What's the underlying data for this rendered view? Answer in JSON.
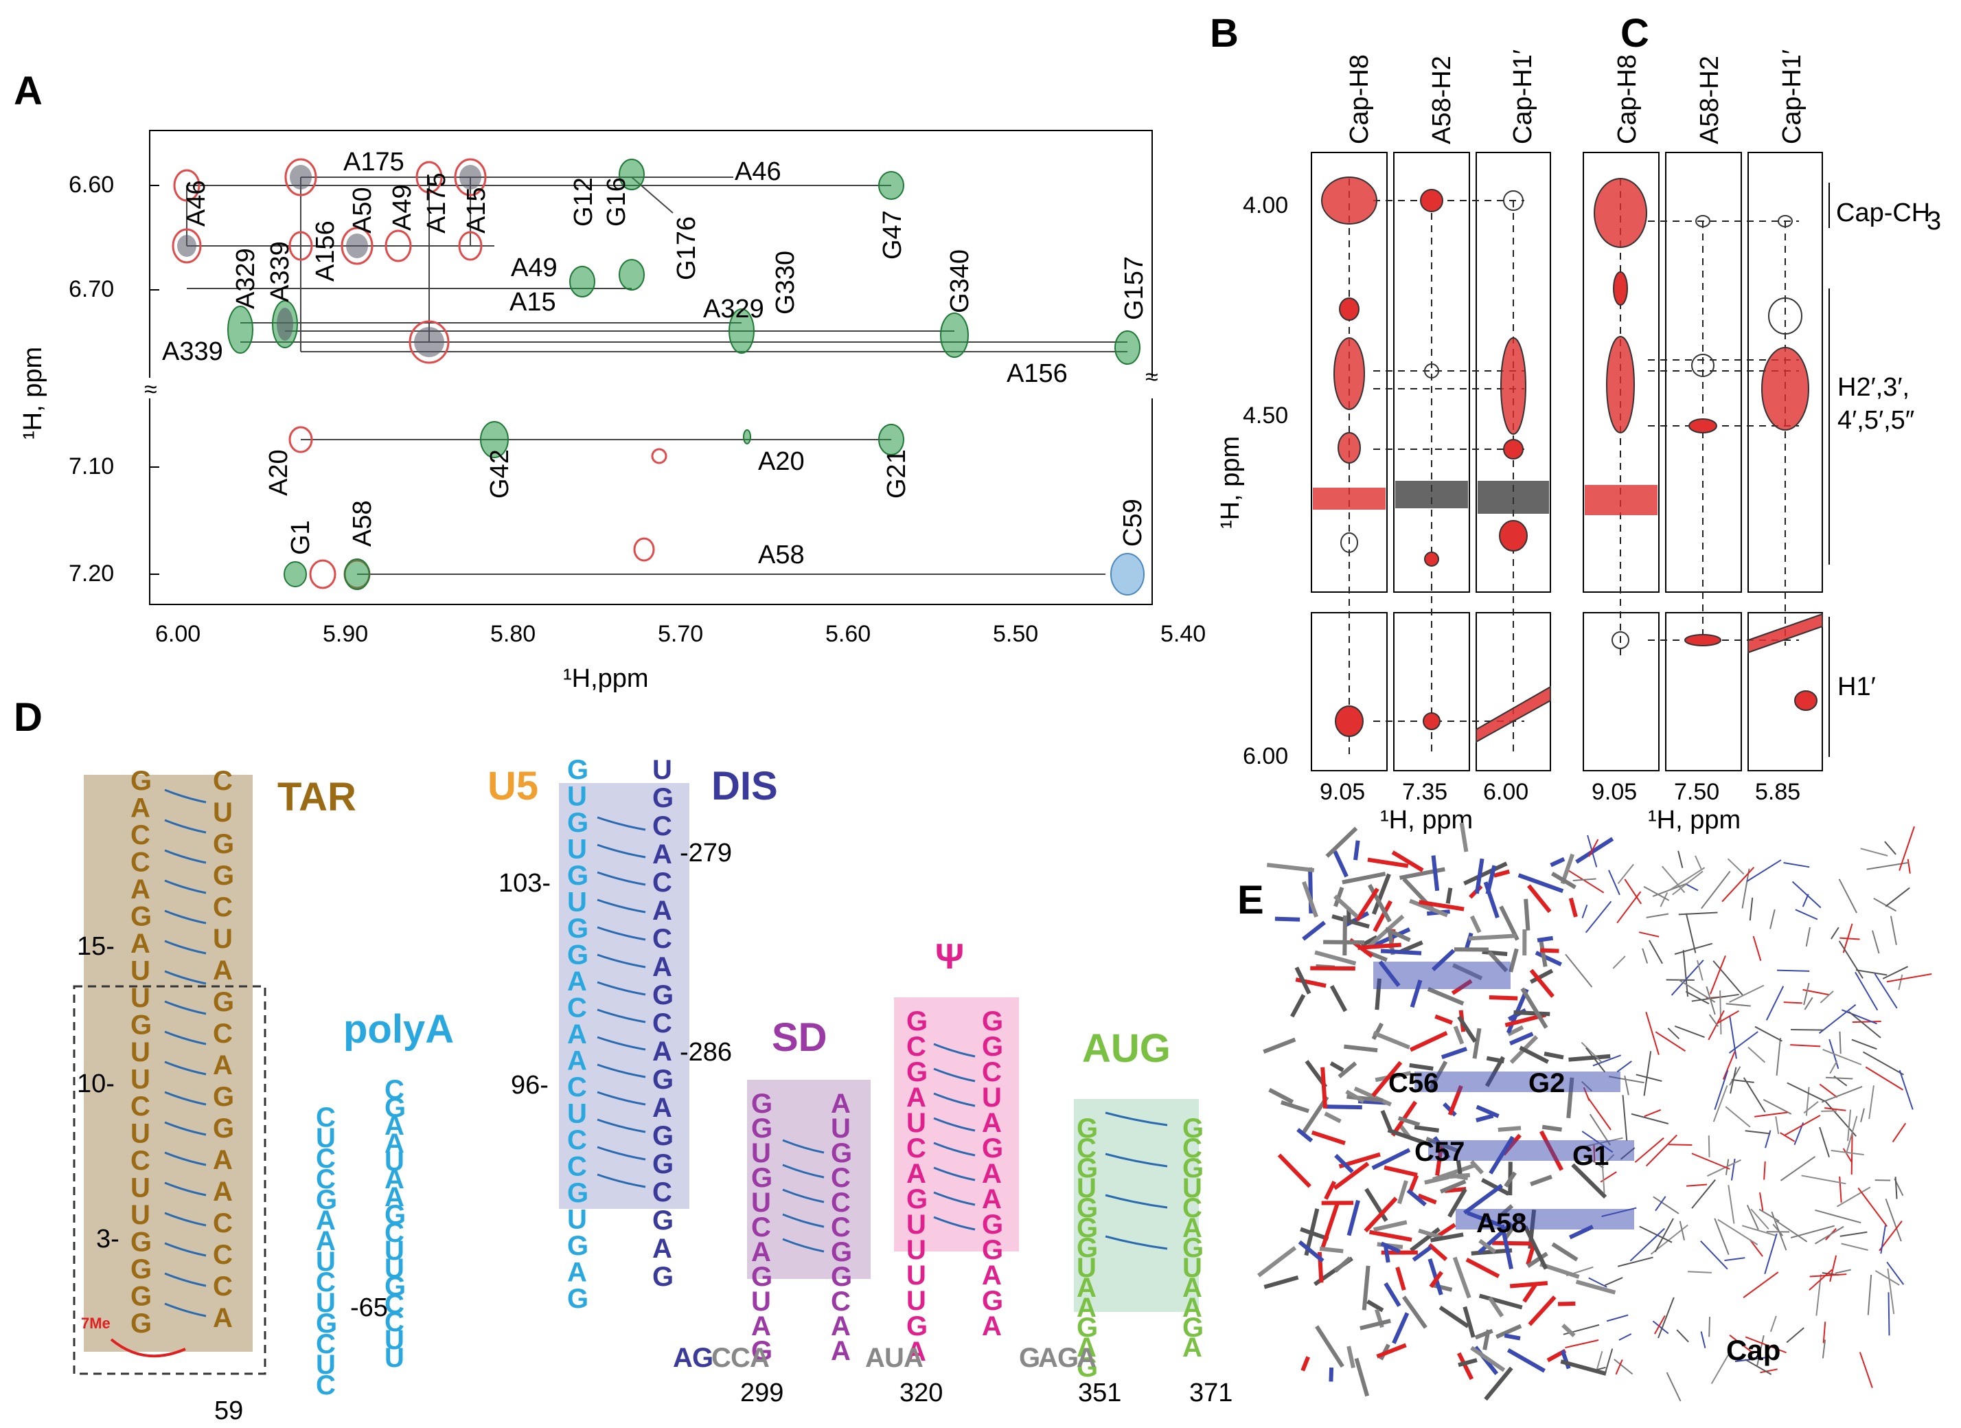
{
  "panels": {
    "A": {
      "letter": "A",
      "xlabel": "¹H,ppm",
      "ylabel": "¹H, ppm",
      "x_ticks": [
        "6.00",
        "5.90",
        "5.80",
        "5.70",
        "5.60",
        "5.50",
        "5.40"
      ],
      "y_ticks_upper": [
        "6.60",
        "6.70"
      ],
      "y_ticks_lower": [
        "7.10",
        "7.20"
      ],
      "break_glyph": "≈",
      "labels": [
        "A175",
        "A46",
        "A46",
        "A329",
        "A339",
        "A156",
        "A50",
        "A49",
        "A175",
        "A15",
        "A49",
        "A15",
        "G12",
        "G16",
        "G176",
        "G330",
        "G47",
        "G340",
        "G157",
        "A329",
        "A339",
        "A156",
        "A20",
        "G42",
        "A20",
        "G21",
        "G1",
        "A58",
        "G1",
        "A58",
        "C59"
      ]
    },
    "B": {
      "letter": "B",
      "col_labels": [
        "Cap-H8",
        "A58-H2",
        "Cap-H1′"
      ],
      "x_ticks": [
        "9.05",
        "7.35",
        "6.00"
      ],
      "y_ticks": [
        "4.00",
        "4.50",
        "6.00"
      ],
      "xlabel": "¹H, ppm",
      "ylabel": "¹H, ppm"
    },
    "C": {
      "letter": "C",
      "col_labels": [
        "Cap-H8",
        "A58-H2",
        "Cap-H1′"
      ],
      "x_ticks": [
        "9.05",
        "7.50",
        "5.85"
      ],
      "xlabel": "¹H, ppm",
      "right_labels": [
        "Cap-CH",
        "3",
        "H2′,3′,",
        "4′,5′,5″",
        "H1′"
      ]
    },
    "D": {
      "letter": "D",
      "domains": [
        "TAR",
        "U5",
        "DIS",
        "polyA",
        "SD",
        "Ψ",
        "AUG"
      ],
      "position_labels": [
        "15-",
        "10-",
        "3-",
        "103-",
        "96-",
        "-279",
        "-286",
        "-65",
        "59",
        "299",
        "320",
        "351",
        "371"
      ],
      "cap_label": "7Me",
      "tar_left": [
        "G",
        "A",
        "C",
        "C",
        "A",
        "G",
        "A",
        "U",
        "U",
        "G",
        "U",
        "U",
        "C",
        "U",
        "C",
        "U",
        "U",
        "G",
        "G",
        "G",
        "G"
      ],
      "tar_right": [
        "C",
        "U",
        "G",
        "G",
        "C",
        "U",
        "A",
        "G",
        "C",
        "A",
        "G",
        "G",
        "A",
        "A",
        "C",
        "C",
        "C",
        "A"
      ],
      "u5_dis_left": [
        "G",
        "U",
        "G",
        "U",
        "G",
        "U",
        "G",
        "G",
        "A",
        "C",
        "A",
        "A",
        "C",
        "U",
        "C",
        "C",
        "G",
        "U",
        "G",
        "A",
        "G"
      ],
      "u5_dis_right": [
        "U",
        "G",
        "C",
        "A",
        "C",
        "A",
        "C",
        "A",
        "G",
        "C",
        "A",
        "G",
        "A",
        "G",
        "G",
        "C",
        "G",
        "A",
        "G"
      ],
      "polya": [
        "C",
        "U",
        "C",
        "C",
        "G",
        "A",
        "A",
        "U",
        "C",
        "U",
        "G",
        "C",
        "U",
        "C",
        "C",
        "G",
        "A",
        "A",
        "U",
        "A",
        "A",
        "G",
        "C",
        "U",
        "U",
        "G",
        "C",
        "C",
        "U",
        "U"
      ],
      "sd": [
        "G",
        "G",
        "U",
        "G",
        "U",
        "C",
        "A",
        "G",
        "U",
        "A",
        "G",
        "A",
        "U",
        "G",
        "C",
        "C",
        "C",
        "G",
        "G",
        "C",
        "A",
        "A"
      ],
      "psi": [
        "G",
        "C",
        "G",
        "A",
        "U",
        "C",
        "A",
        "G",
        "U",
        "U",
        "U",
        "U",
        "G",
        "A",
        "G",
        "G",
        "C",
        "U",
        "A",
        "G",
        "A",
        "A",
        "G",
        "G",
        "A",
        "G",
        "A"
      ],
      "aug": [
        "G",
        "C",
        "G",
        "U",
        "G",
        "G",
        "G",
        "U",
        "A",
        "A",
        "G",
        "A",
        "G",
        "G",
        "C",
        "G",
        "U",
        "C",
        "A",
        "G",
        "U",
        "A",
        "A",
        "G",
        "A"
      ],
      "linker": [
        "A",
        "G",
        "C",
        "C",
        "A",
        "A",
        "U",
        "A",
        "G",
        "A",
        "G",
        "A"
      ]
    },
    "E": {
      "letter": "E",
      "labels": [
        "C56",
        "G2",
        "C57",
        "G1",
        "A58",
        "Cap"
      ]
    }
  },
  "colors": {
    "tar": "#9a6a14",
    "tar_box": "#c8b89a",
    "polya": "#29a8e0",
    "u5": "#f0a030",
    "dis": "#3a3a9a",
    "dis_box": "#c9cbe4",
    "sd": "#9b3aa4",
    "sd_box": "#d6c3dc",
    "psi": "#e0208c",
    "psi_box": "#f8c8e0",
    "aug": "#7ac043",
    "aug_box": "#cfe8d8",
    "green_peak": "#2a9a4a",
    "red_peak": "#e03030",
    "blue_peak": "#6aa8d8",
    "cap_red": "#e02020"
  }
}
